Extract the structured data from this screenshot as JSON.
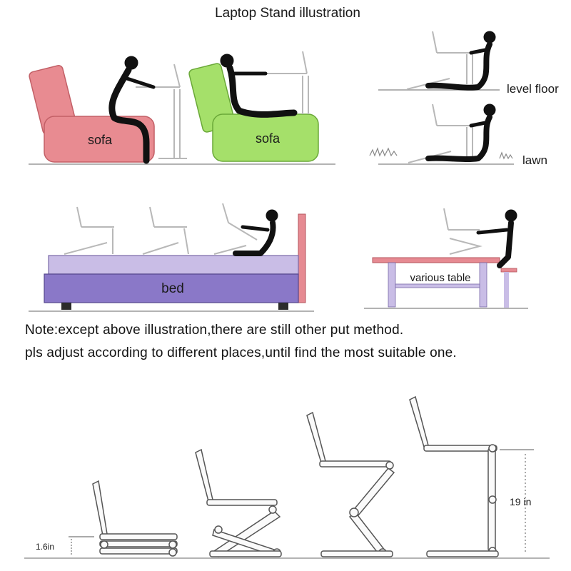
{
  "title": "Laptop Stand  illustration",
  "scenes": {
    "sofa_pink_label": "sofa",
    "sofa_green_label": "sofa",
    "level_floor_label": "level floor",
    "lawn_label": "lawn",
    "bed_label": "bed",
    "table_label": "various table"
  },
  "colors": {
    "sofa_pink": "#e88b91",
    "sofa_green": "#a5e06a",
    "bed_top": "#c9bde6",
    "bed_base": "#8a78c8",
    "headboard": "#e68a92",
    "table_top": "#e68a92",
    "table_legs": "#c9bde6"
  },
  "notes": {
    "line1": "Note:except above illustration,there are still other put method.",
    "line2": "pls adjust according to different places,until find the most suitable one."
  },
  "heights": {
    "min_label": "1.6in",
    "max_label": "19 in"
  }
}
